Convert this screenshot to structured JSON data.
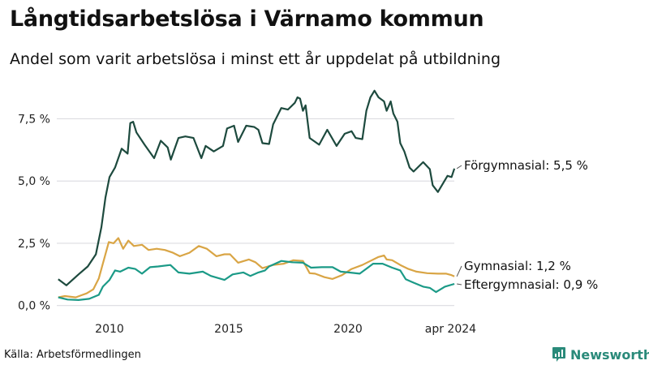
{
  "title": "Långtidsarbetslösa i Värnamo kommun",
  "subtitle": "Andel som varit arbetslösa i minst ett år uppdelat på utbildning",
  "source": "Källa: Arbetsförmedlingen",
  "brand": "Newsworthy",
  "chart_data": {
    "type": "line",
    "title": "Långtidsarbetslösa i Värnamo kommun",
    "xlabel": "",
    "ylabel": "",
    "ylim": [
      0,
      8.7
    ],
    "xlim": [
      2007.75,
      2024.5
    ],
    "yticks": [
      0,
      2.5,
      5,
      7.5
    ],
    "ytick_labels": [
      "0,0 %",
      "2,5 %",
      "5,0 %",
      "7,5 %"
    ],
    "xticks": [
      2010,
      2015,
      2020,
      2024.3
    ],
    "xtick_labels": [
      "2010",
      "2015",
      "2020",
      "apr 2024"
    ],
    "grid": true,
    "series": [
      {
        "name": "Förgymnasial",
        "end_label": "Förgymnasial: 5,5 %",
        "color": "#1d4a3e",
        "x": [
          2007.85,
          2008.19,
          2008.7,
          2009.09,
          2009.43,
          2009.66,
          2009.83,
          2010.0,
          2010.23,
          2010.51,
          2010.76,
          2010.87,
          2010.99,
          2011.13,
          2011.47,
          2011.87,
          2012.15,
          2012.44,
          2012.57,
          2012.89,
          2013.18,
          2013.52,
          2013.85,
          2014.03,
          2014.37,
          2014.76,
          2014.93,
          2015.22,
          2015.39,
          2015.73,
          2016.07,
          2016.24,
          2016.41,
          2016.69,
          2016.86,
          2017.2,
          2017.48,
          2017.77,
          2017.88,
          2017.99,
          2018.11,
          2018.22,
          2018.39,
          2018.79,
          2019.13,
          2019.52,
          2019.86,
          2020.15,
          2020.32,
          2020.6,
          2020.77,
          2020.94,
          2021.11,
          2021.28,
          2021.51,
          2021.62,
          2021.79,
          2021.9,
          2022.07,
          2022.19,
          2022.36,
          2022.58,
          2022.75,
          2023.15,
          2023.43,
          2023.55,
          2023.77,
          2024.17,
          2024.34,
          2024.46
        ],
        "y": [
          1.06,
          0.81,
          1.25,
          1.57,
          2.06,
          3.15,
          4.34,
          5.16,
          5.54,
          6.3,
          6.1,
          7.33,
          7.38,
          6.95,
          6.46,
          5.92,
          6.62,
          6.35,
          5.86,
          6.73,
          6.79,
          6.73,
          5.92,
          6.41,
          6.19,
          6.41,
          7.11,
          7.22,
          6.57,
          7.22,
          7.17,
          7.06,
          6.52,
          6.49,
          7.28,
          7.93,
          7.87,
          8.14,
          8.36,
          8.31,
          7.82,
          8.04,
          6.73,
          6.46,
          7.06,
          6.41,
          6.9,
          7.0,
          6.73,
          6.68,
          7.82,
          8.36,
          8.63,
          8.36,
          8.2,
          7.82,
          8.2,
          7.71,
          7.38,
          6.52,
          6.19,
          5.54,
          5.38,
          5.76,
          5.48,
          4.83,
          4.56,
          5.21,
          5.16,
          5.5
        ]
      },
      {
        "name": "Gymnasial",
        "end_label": "Gymnasial: 1,2 %",
        "color": "#d9a545",
        "x": [
          2007.85,
          2008.13,
          2008.58,
          2008.81,
          2009.04,
          2009.32,
          2009.55,
          2009.77,
          2009.97,
          2010.17,
          2010.37,
          2010.57,
          2010.79,
          2011.02,
          2011.36,
          2011.64,
          2011.98,
          2012.32,
          2012.66,
          2012.95,
          2013.35,
          2013.74,
          2014.08,
          2014.48,
          2014.82,
          2015.05,
          2015.39,
          2015.84,
          2016.12,
          2016.41,
          2016.86,
          2017.31,
          2017.71,
          2018.11,
          2018.39,
          2018.62,
          2019.01,
          2019.35,
          2019.75,
          2020.15,
          2020.6,
          2020.94,
          2021.28,
          2021.51,
          2021.62,
          2021.85,
          2022.19,
          2022.53,
          2022.87,
          2023.32,
          2023.77,
          2024.12,
          2024.34,
          2024.46
        ],
        "y": [
          0.33,
          0.38,
          0.33,
          0.41,
          0.49,
          0.65,
          1.09,
          1.85,
          2.55,
          2.5,
          2.71,
          2.28,
          2.61,
          2.39,
          2.44,
          2.23,
          2.28,
          2.23,
          2.12,
          1.98,
          2.12,
          2.39,
          2.28,
          1.98,
          2.06,
          2.06,
          1.72,
          1.85,
          1.74,
          1.5,
          1.63,
          1.68,
          1.82,
          1.79,
          1.3,
          1.28,
          1.14,
          1.07,
          1.22,
          1.47,
          1.63,
          1.79,
          1.95,
          2.01,
          1.85,
          1.82,
          1.63,
          1.47,
          1.36,
          1.3,
          1.28,
          1.28,
          1.22,
          1.17
        ]
      },
      {
        "name": "Eftergymnasial",
        "end_label": "Eftergymnasial: 0,9 %",
        "color": "#1b9a87",
        "x": [
          2007.85,
          2008.24,
          2008.7,
          2009.15,
          2009.55,
          2009.72,
          2010.0,
          2010.23,
          2010.45,
          2010.79,
          2011.08,
          2011.36,
          2011.7,
          2012.04,
          2012.55,
          2012.89,
          2013.35,
          2013.91,
          2014.25,
          2014.82,
          2015.16,
          2015.61,
          2015.9,
          2016.24,
          2016.52,
          2016.69,
          2017.2,
          2017.65,
          2018.11,
          2018.45,
          2018.9,
          2019.35,
          2019.69,
          2020.03,
          2020.49,
          2020.83,
          2021.05,
          2021.45,
          2021.85,
          2022.19,
          2022.42,
          2022.75,
          2023.15,
          2023.43,
          2023.69,
          2024.06,
          2024.46
        ],
        "y": [
          0.33,
          0.24,
          0.22,
          0.27,
          0.43,
          0.76,
          1.03,
          1.41,
          1.36,
          1.52,
          1.47,
          1.28,
          1.54,
          1.57,
          1.63,
          1.33,
          1.28,
          1.36,
          1.19,
          1.03,
          1.25,
          1.33,
          1.19,
          1.33,
          1.41,
          1.57,
          1.79,
          1.74,
          1.72,
          1.52,
          1.54,
          1.54,
          1.36,
          1.33,
          1.28,
          1.52,
          1.68,
          1.68,
          1.52,
          1.41,
          1.06,
          0.92,
          0.76,
          0.71,
          0.54,
          0.76,
          0.87
        ]
      }
    ]
  }
}
